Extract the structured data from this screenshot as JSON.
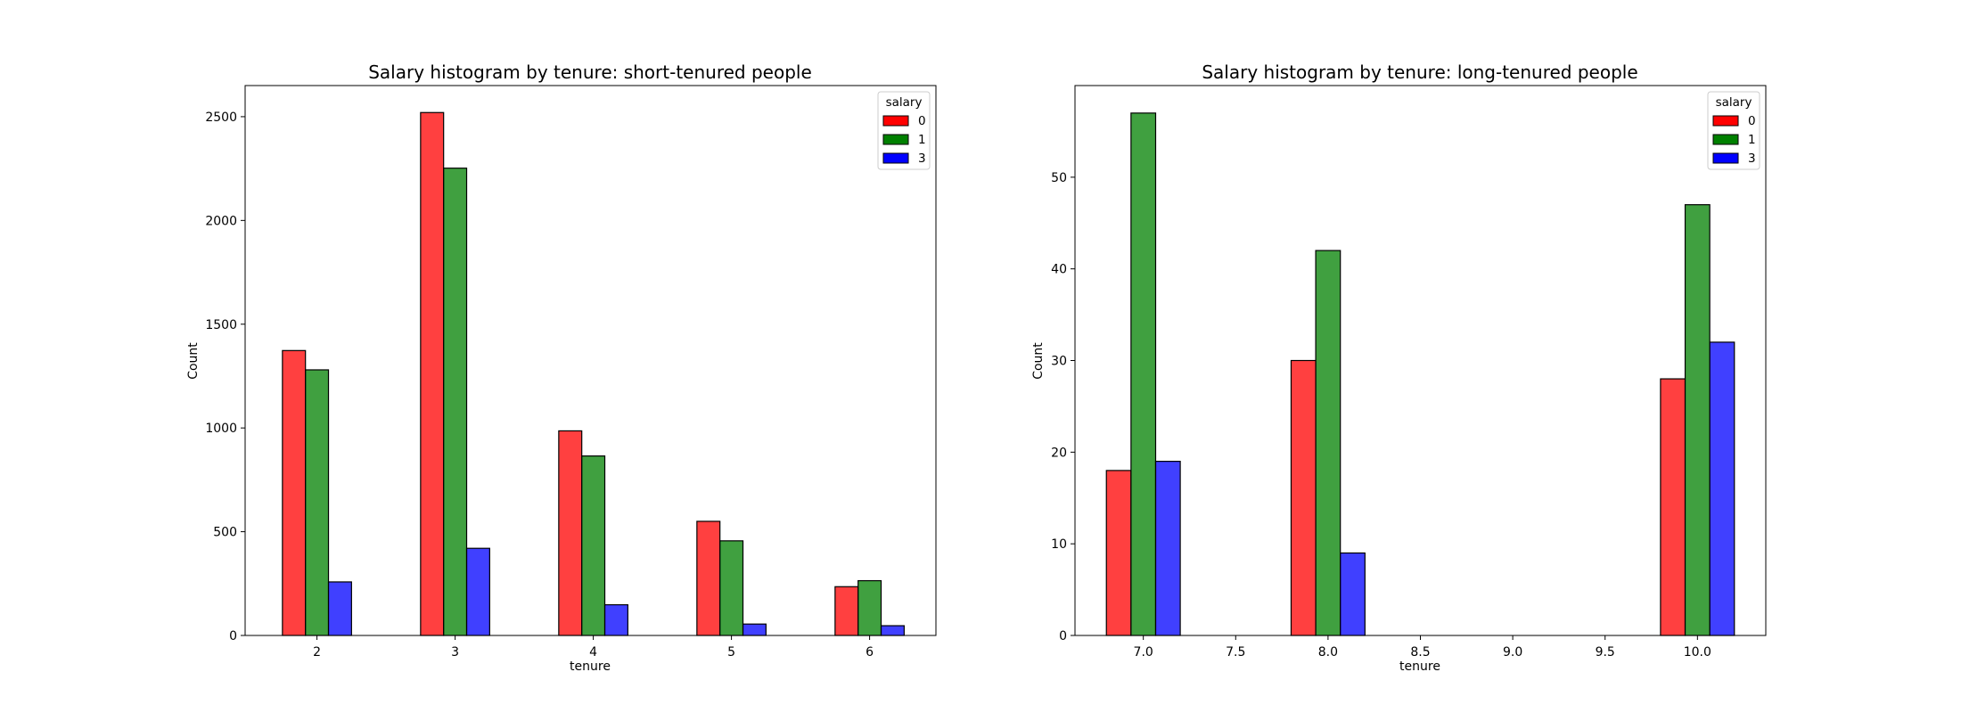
{
  "chart_data": [
    {
      "type": "bar",
      "title": "Salary histogram by tenure: short-tenured people",
      "xlabel": "tenure",
      "ylabel": "Count",
      "categories": [
        2,
        3,
        4,
        5,
        6
      ],
      "xticks": [
        "2",
        "3",
        "4",
        "5",
        "6"
      ],
      "xlim": [
        1.48,
        6.48
      ],
      "ylim": [
        0,
        2650
      ],
      "yticks": [
        0,
        500,
        1000,
        1500,
        2000,
        2500
      ],
      "legend": {
        "title": "salary",
        "placement": "top-right"
      },
      "series": [
        {
          "name": "0",
          "color": "#ff0000",
          "values": [
            1373,
            2520,
            986,
            550,
            235
          ]
        },
        {
          "name": "1",
          "color": "#008000",
          "values": [
            1280,
            2252,
            865,
            456,
            264
          ]
        },
        {
          "name": "3",
          "color": "#0000ff",
          "values": [
            258,
            420,
            148,
            55,
            47
          ]
        }
      ]
    },
    {
      "type": "bar",
      "title": "Salary histogram by tenure: long-tenured people",
      "xlabel": "tenure",
      "ylabel": "Count",
      "categories": [
        7,
        8,
        10
      ],
      "xticks": [
        "7.0",
        "7.5",
        "8.0",
        "8.5",
        "9.0",
        "9.5",
        "10.0"
      ],
      "xtick_values": [
        7.0,
        7.5,
        8.0,
        8.5,
        9.0,
        9.5,
        10.0
      ],
      "xlim": [
        6.63,
        10.37
      ],
      "ylim": [
        0,
        60
      ],
      "yticks": [
        0,
        10,
        20,
        30,
        40,
        50
      ],
      "legend": {
        "title": "salary",
        "placement": "top-right"
      },
      "series": [
        {
          "name": "0",
          "color": "#ff0000",
          "values": [
            18,
            30,
            28
          ]
        },
        {
          "name": "1",
          "color": "#008000",
          "values": [
            57,
            42,
            47
          ]
        },
        {
          "name": "3",
          "color": "#0000ff",
          "values": [
            19,
            9,
            32
          ]
        }
      ]
    }
  ]
}
